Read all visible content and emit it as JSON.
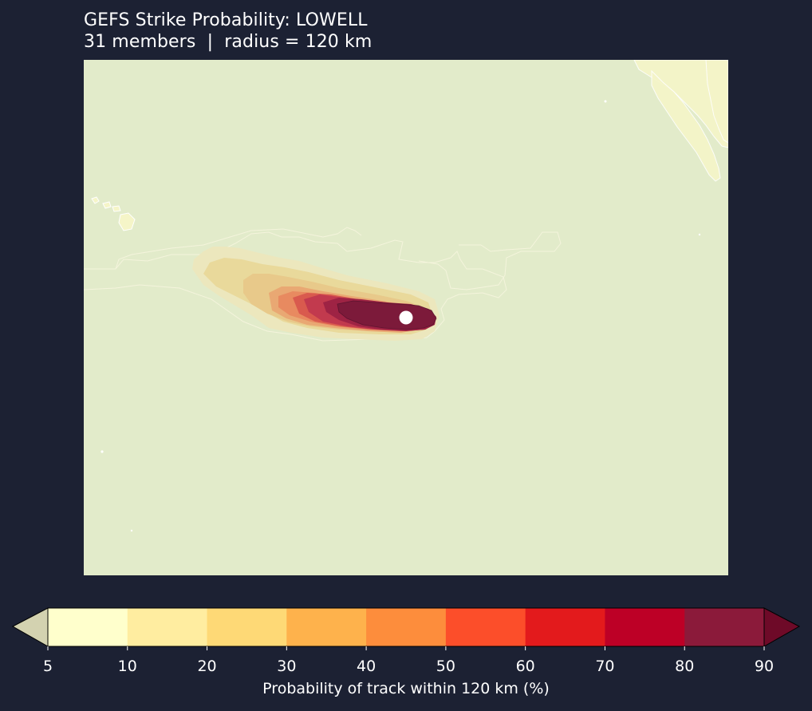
{
  "title": "GEFS Strike Probability: LOWELL",
  "subtitle": "31 members  |  radius = 120 km",
  "colors": {
    "background": "#1c2133",
    "ocean": "#e2ebca",
    "land": "#f5f5c8",
    "coast": "#ffffff",
    "storm_marker": "#ffffff"
  },
  "colorbar": {
    "label": "Probability of track within 120 km (%)",
    "levels": [
      5,
      10,
      20,
      30,
      40,
      50,
      60,
      70,
      80,
      90
    ],
    "tick_labels": [
      "5",
      "10",
      "20",
      "30",
      "40",
      "50",
      "60",
      "70",
      "80",
      "90"
    ],
    "colors": [
      "#ffffcc",
      "#ffeda0",
      "#fed976",
      "#feb24c",
      "#fd8d3c",
      "#fc4e2a",
      "#e31a1c",
      "#bd0026",
      "#8b1a3a"
    ],
    "under_color": "#d3d2b0",
    "over_color": "#6e0a28",
    "extend": "both"
  }
}
